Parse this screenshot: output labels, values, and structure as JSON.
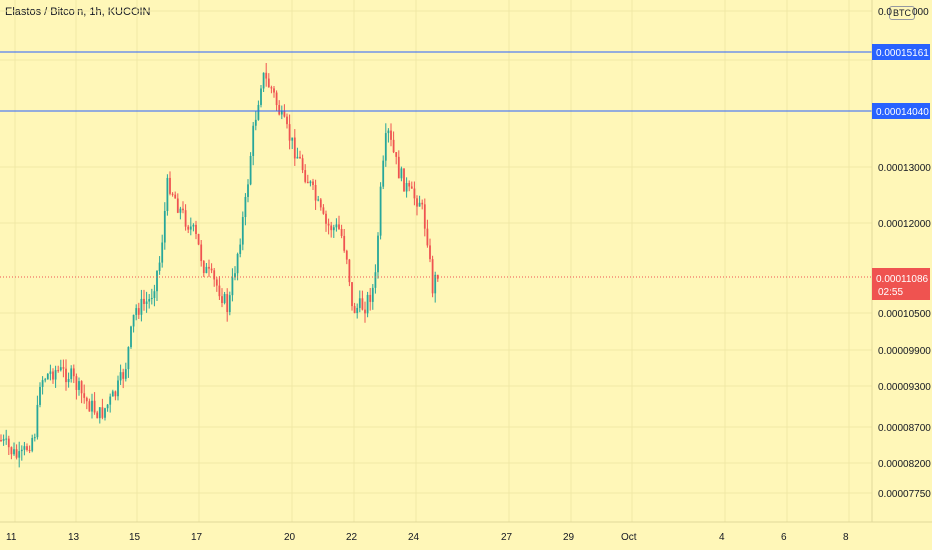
{
  "header": {
    "title": "Elastos / Bitcoin, 1h, KUCOIN",
    "currency": "BTC"
  },
  "price_axis": {
    "top_partial": "0.0",
    "top_partial_tail": "000",
    "ticks": [
      "0.00013000",
      "0.00012000",
      "0.00010500",
      "0.00009900",
      "0.00009300",
      "0.00008700",
      "0.00008200",
      "0.00007750"
    ]
  },
  "time_axis": {
    "ticks": [
      "11",
      "13",
      "15",
      "17",
      "20",
      "22",
      "24",
      "27",
      "29",
      "Oct",
      "4",
      "6",
      "8"
    ]
  },
  "levels": [
    {
      "label": "0.00015161",
      "color": "#2962ff"
    },
    {
      "label": "0.00014040",
      "color": "#2962ff"
    }
  ],
  "current_price": {
    "label": "0.00011086",
    "countdown": "02:55",
    "color": "#ef5350"
  },
  "colors": {
    "up": "#26a69a",
    "down": "#ef5350",
    "background": "#fff7b8",
    "grid": "#f0e8a6"
  }
}
